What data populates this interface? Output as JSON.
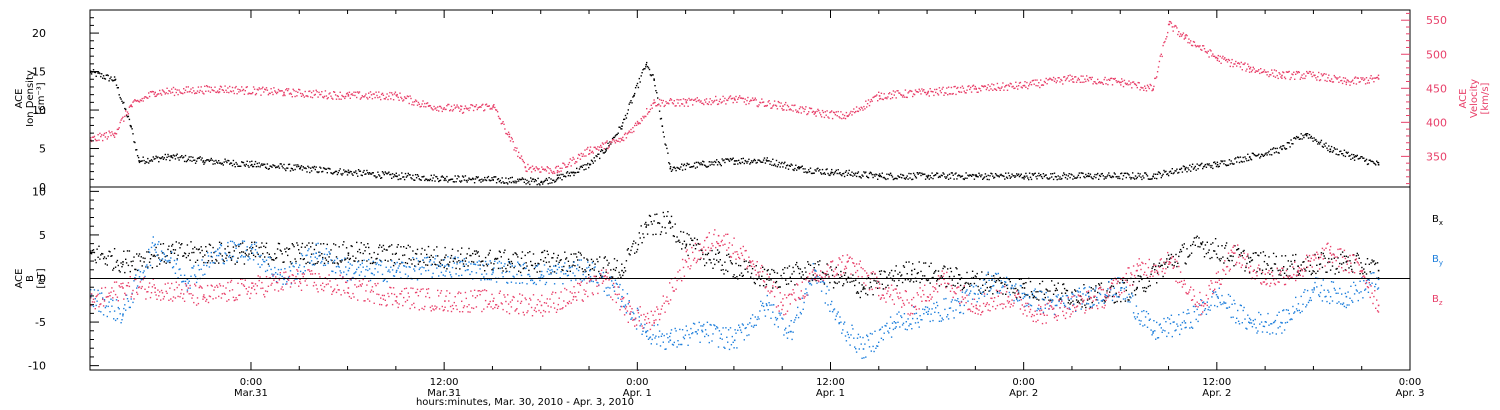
{
  "chart_data": {
    "type": "scatter",
    "x_range": [
      "2010-03-30T14:00",
      "2010-04-03T00:00"
    ],
    "xlabel": "hours:minutes, Mar. 30, 2010 - Apr. 3, 2010",
    "x_ticks": [
      {
        "t": "2010-03-31T00:00",
        "time": "0:00",
        "date": "Mar.31"
      },
      {
        "t": "2010-03-31T12:00",
        "time": "12:00",
        "date": "Mar.31"
      },
      {
        "t": "2010-04-01T00:00",
        "time": "0:00",
        "date": "Apr. 1"
      },
      {
        "t": "2010-04-01T12:00",
        "time": "12:00",
        "date": "Apr. 1"
      },
      {
        "t": "2010-04-02T00:00",
        "time": "0:00",
        "date": "Apr. 2"
      },
      {
        "t": "2010-04-02T12:00",
        "time": "12:00",
        "date": "Apr. 2"
      },
      {
        "t": "2010-04-03T00:00",
        "time": "0:00",
        "date": "Apr. 3"
      }
    ],
    "panels": [
      {
        "left_axis": {
          "label_lines": [
            "ACE",
            "Ion Density",
            "[cm⁻³]"
          ],
          "ylim": [
            0,
            23
          ],
          "ticks": [
            0,
            5,
            10,
            15,
            20
          ],
          "tick_labels": [
            "0",
            "5",
            "10",
            "15",
            "20"
          ]
        },
        "right_axis": {
          "label_lines": [
            "ACE",
            "Velocity",
            "[km/s]"
          ],
          "ylim": [
            305,
            565
          ],
          "ticks": [
            350,
            400,
            450,
            500,
            550
          ],
          "tick_labels": [
            "350",
            "400",
            "450",
            "500",
            "550"
          ],
          "color": "#e8406a"
        },
        "series": [
          {
            "key": "density",
            "axis": "left",
            "color": "#000000",
            "points": [
              [
                "2010-03-30T14:00",
                15
              ],
              [
                "2010-03-30T15:30",
                14
              ],
              [
                "2010-03-30T16:30",
                8
              ],
              [
                "2010-03-30T17:00",
                3.5
              ],
              [
                "2010-03-30T19:00",
                4
              ],
              [
                "2010-03-30T21:00",
                3.5
              ],
              [
                "2010-03-31T00:00",
                3
              ],
              [
                "2010-03-31T03:00",
                2.5
              ],
              [
                "2010-03-31T06:00",
                2
              ],
              [
                "2010-03-31T09:00",
                1.5
              ],
              [
                "2010-03-31T12:00",
                1.2
              ],
              [
                "2010-03-31T15:00",
                1
              ],
              [
                "2010-03-31T18:00",
                0.8
              ],
              [
                "2010-03-31T19:00",
                1.2
              ],
              [
                "2010-03-31T20:00",
                2
              ],
              [
                "2010-03-31T21:00",
                3
              ],
              [
                "2010-03-31T22:00",
                5
              ],
              [
                "2010-03-31T23:00",
                8
              ],
              [
                "2010-03-31T23:45",
                12
              ],
              [
                "2010-04-01T00:30",
                16
              ],
              [
                "2010-04-01T01:00",
                14
              ],
              [
                "2010-04-01T01:30",
                8
              ],
              [
                "2010-04-01T02:00",
                2.5
              ],
              [
                "2010-04-01T04:00",
                3
              ],
              [
                "2010-04-01T06:00",
                3.5
              ],
              [
                "2010-04-01T08:00",
                3.5
              ],
              [
                "2010-04-01T10:00",
                2.5
              ],
              [
                "2010-04-01T12:00",
                2
              ],
              [
                "2010-04-01T15:00",
                1.5
              ],
              [
                "2010-04-01T18:00",
                1.5
              ],
              [
                "2010-04-01T21:00",
                1.5
              ],
              [
                "2010-04-02T00:00",
                1.5
              ],
              [
                "2010-04-02T04:00",
                1.5
              ],
              [
                "2010-04-02T08:00",
                1.5
              ],
              [
                "2010-04-02T10:00",
                2.5
              ],
              [
                "2010-04-02T12:00",
                3
              ],
              [
                "2010-04-02T14:00",
                4
              ],
              [
                "2010-04-02T16:00",
                5
              ],
              [
                "2010-04-02T17:30",
                7
              ],
              [
                "2010-04-02T19:00",
                5
              ],
              [
                "2010-04-02T20:30",
                4
              ],
              [
                "2010-04-02T22:00",
                3
              ]
            ]
          },
          {
            "key": "velocity",
            "axis": "right",
            "color": "#e8406a",
            "points": [
              [
                "2010-03-30T14:00",
                375
              ],
              [
                "2010-03-30T15:30",
                385
              ],
              [
                "2010-03-30T16:30",
                425
              ],
              [
                "2010-03-30T18:00",
                445
              ],
              [
                "2010-03-30T22:00",
                450
              ],
              [
                "2010-03-31T02:00",
                445
              ],
              [
                "2010-03-31T06:00",
                440
              ],
              [
                "2010-03-31T09:00",
                440
              ],
              [
                "2010-03-31T11:00",
                425
              ],
              [
                "2010-03-31T13:00",
                420
              ],
              [
                "2010-03-31T15:00",
                425
              ],
              [
                "2010-03-31T16:00",
                380
              ],
              [
                "2010-03-31T17:00",
                335
              ],
              [
                "2010-03-31T19:00",
                330
              ],
              [
                "2010-03-31T21:00",
                360
              ],
              [
                "2010-03-31T23:00",
                375
              ],
              [
                "2010-04-01T00:00",
                400
              ],
              [
                "2010-04-01T01:00",
                430
              ],
              [
                "2010-04-01T03:00",
                430
              ],
              [
                "2010-04-01T06:00",
                435
              ],
              [
                "2010-04-01T09:00",
                425
              ],
              [
                "2010-04-01T11:00",
                415
              ],
              [
                "2010-04-01T13:00",
                410
              ],
              [
                "2010-04-01T15:00",
                440
              ],
              [
                "2010-04-01T18:00",
                445
              ],
              [
                "2010-04-01T21:00",
                450
              ],
              [
                "2010-04-02T00:00",
                455
              ],
              [
                "2010-04-02T03:00",
                465
              ],
              [
                "2010-04-02T06:00",
                460
              ],
              [
                "2010-04-02T08:00",
                450
              ],
              [
                "2010-04-02T09:00",
                545
              ],
              [
                "2010-04-02T10:00",
                525
              ],
              [
                "2010-04-02T12:00",
                495
              ],
              [
                "2010-04-02T14:00",
                480
              ],
              [
                "2010-04-02T16:00",
                470
              ],
              [
                "2010-04-02T18:00",
                470
              ],
              [
                "2010-04-02T20:00",
                460
              ],
              [
                "2010-04-02T22:00",
                465
              ]
            ]
          }
        ]
      },
      {
        "left_axis": {
          "label_lines": [
            "ACE",
            "B",
            "[nT]"
          ],
          "ylim": [
            -10.5,
            10.5
          ],
          "ticks": [
            -10,
            -5,
            0,
            5,
            10
          ],
          "tick_labels": [
            "-10",
            "-5",
            "0",
            "5",
            "10"
          ],
          "zero_line": true
        },
        "legend": {
          "placement": "right",
          "entries": [
            {
              "key": "bx",
              "label": "B",
              "sub": "x",
              "color": "#000000"
            },
            {
              "key": "by",
              "label": "B",
              "sub": "y",
              "color": "#1e7fdc"
            },
            {
              "key": "bz",
              "label": "B",
              "sub": "z",
              "color": "#e8406a"
            }
          ]
        },
        "series": [
          {
            "key": "bx",
            "axis": "left",
            "color": "#000000",
            "points": [
              [
                "2010-03-30T14:00",
                3
              ],
              [
                "2010-03-30T16:00",
                2
              ],
              [
                "2010-03-30T19:00",
                3
              ],
              [
                "2010-03-31T00:00",
                3
              ],
              [
                "2010-03-31T06:00",
                3
              ],
              [
                "2010-03-31T12:00",
                2.5
              ],
              [
                "2010-03-31T16:00",
                2
              ],
              [
                "2010-03-31T20:00",
                2
              ],
              [
                "2010-03-31T23:00",
                1
              ],
              [
                "2010-04-01T00:30",
                6
              ],
              [
                "2010-04-01T02:00",
                6.5
              ],
              [
                "2010-04-01T03:00",
                4
              ],
              [
                "2010-04-01T05:00",
                2
              ],
              [
                "2010-04-01T08:00",
                0
              ],
              [
                "2010-04-01T11:00",
                1
              ],
              [
                "2010-04-01T14:00",
                -1
              ],
              [
                "2010-04-01T17:00",
                1
              ],
              [
                "2010-04-01T20:00",
                0
              ],
              [
                "2010-04-02T00:00",
                -1
              ],
              [
                "2010-04-02T04:00",
                -2
              ],
              [
                "2010-04-02T07:00",
                -1
              ],
              [
                "2010-04-02T09:00",
                2
              ],
              [
                "2010-04-02T11:00",
                4
              ],
              [
                "2010-04-02T14:00",
                2
              ],
              [
                "2010-04-02T17:00",
                1.5
              ],
              [
                "2010-04-02T20:00",
                2
              ],
              [
                "2010-04-02T22:00",
                1
              ]
            ]
          },
          {
            "key": "by",
            "axis": "left",
            "color": "#1e7fdc",
            "points": [
              [
                "2010-03-30T14:00",
                -2
              ],
              [
                "2010-03-30T16:00",
                -4
              ],
              [
                "2010-03-30T18:00",
                4
              ],
              [
                "2010-03-30T20:00",
                0
              ],
              [
                "2010-03-30T22:00",
                3
              ],
              [
                "2010-03-31T00:00",
                3.5
              ],
              [
                "2010-03-31T02:00",
                0
              ],
              [
                "2010-03-31T04:00",
                3
              ],
              [
                "2010-03-31T06:00",
                1
              ],
              [
                "2010-03-31T09:00",
                1
              ],
              [
                "2010-03-31T12:00",
                1.5
              ],
              [
                "2010-03-31T15:00",
                1
              ],
              [
                "2010-03-31T18:00",
                0.5
              ],
              [
                "2010-03-31T21:00",
                1
              ],
              [
                "2010-03-31T23:00",
                -2
              ],
              [
                "2010-04-01T00:30",
                -6
              ],
              [
                "2010-04-01T02:00",
                -7
              ],
              [
                "2010-04-01T04:00",
                -6
              ],
              [
                "2010-04-01T06:00",
                -7
              ],
              [
                "2010-04-01T08:00",
                -3
              ],
              [
                "2010-04-01T09:30",
                -6
              ],
              [
                "2010-04-01T11:00",
                1
              ],
              [
                "2010-04-01T12:30",
                -5
              ],
              [
                "2010-04-01T14:00",
                -8
              ],
              [
                "2010-04-01T16:00",
                -5
              ],
              [
                "2010-04-01T18:00",
                -4
              ],
              [
                "2010-04-01T20:00",
                -3
              ],
              [
                "2010-04-01T22:00",
                0
              ],
              [
                "2010-04-02T00:00",
                -2
              ],
              [
                "2010-04-02T02:00",
                -3
              ],
              [
                "2010-04-02T04:00",
                -2
              ],
              [
                "2010-04-02T06:00",
                -1
              ],
              [
                "2010-04-02T08:00",
                -6
              ],
              [
                "2010-04-02T10:00",
                -5
              ],
              [
                "2010-04-02T12:00",
                -2
              ],
              [
                "2010-04-02T14:00",
                -5
              ],
              [
                "2010-04-02T16:00",
                -5
              ],
              [
                "2010-04-02T18:00",
                -1
              ],
              [
                "2010-04-02T20:00",
                -2
              ],
              [
                "2010-04-02T22:00",
                0
              ]
            ]
          },
          {
            "key": "bz",
            "axis": "left",
            "color": "#e8406a",
            "points": [
              [
                "2010-03-30T14:00",
                -3
              ],
              [
                "2010-03-30T16:00",
                -1
              ],
              [
                "2010-03-30T18:00",
                -1
              ],
              [
                "2010-03-30T21:00",
                -2
              ],
              [
                "2010-03-31T00:00",
                -1
              ],
              [
                "2010-03-31T03:00",
                0
              ],
              [
                "2010-03-31T06:00",
                -1
              ],
              [
                "2010-03-31T09:00",
                -2
              ],
              [
                "2010-03-31T12:00",
                -2.5
              ],
              [
                "2010-03-31T15:00",
                -2.5
              ],
              [
                "2010-03-31T18:00",
                -3
              ],
              [
                "2010-03-31T20:00",
                -2
              ],
              [
                "2010-03-31T22:00",
                0
              ],
              [
                "2010-03-31T23:30",
                -4
              ],
              [
                "2010-04-01T01:00",
                -5
              ],
              [
                "2010-04-01T03:00",
                2
              ],
              [
                "2010-04-01T05:00",
                5
              ],
              [
                "2010-04-01T07:00",
                2
              ],
              [
                "2010-04-01T09:00",
                -3
              ],
              [
                "2010-04-01T11:00",
                0
              ],
              [
                "2010-04-01T13:00",
                2
              ],
              [
                "2010-04-01T15:00",
                -1
              ],
              [
                "2010-04-01T17:00",
                -3
              ],
              [
                "2010-04-01T19:00",
                0
              ],
              [
                "2010-04-01T21:00",
                -3
              ],
              [
                "2010-04-01T23:00",
                -2
              ],
              [
                "2010-04-02T01:00",
                -4
              ],
              [
                "2010-04-02T03:00",
                -3
              ],
              [
                "2010-04-02T05:00",
                -2
              ],
              [
                "2010-04-02T07:00",
                1
              ],
              [
                "2010-04-02T09:00",
                2
              ],
              [
                "2010-04-02T11:00",
                -3
              ],
              [
                "2010-04-02T13:00",
                3
              ],
              [
                "2010-04-02T15:00",
                0
              ],
              [
                "2010-04-02T17:00",
                1
              ],
              [
                "2010-04-02T19:00",
                3
              ],
              [
                "2010-04-02T21:00",
                1
              ],
              [
                "2010-04-02T22:00",
                -3
              ]
            ]
          }
        ]
      }
    ]
  }
}
